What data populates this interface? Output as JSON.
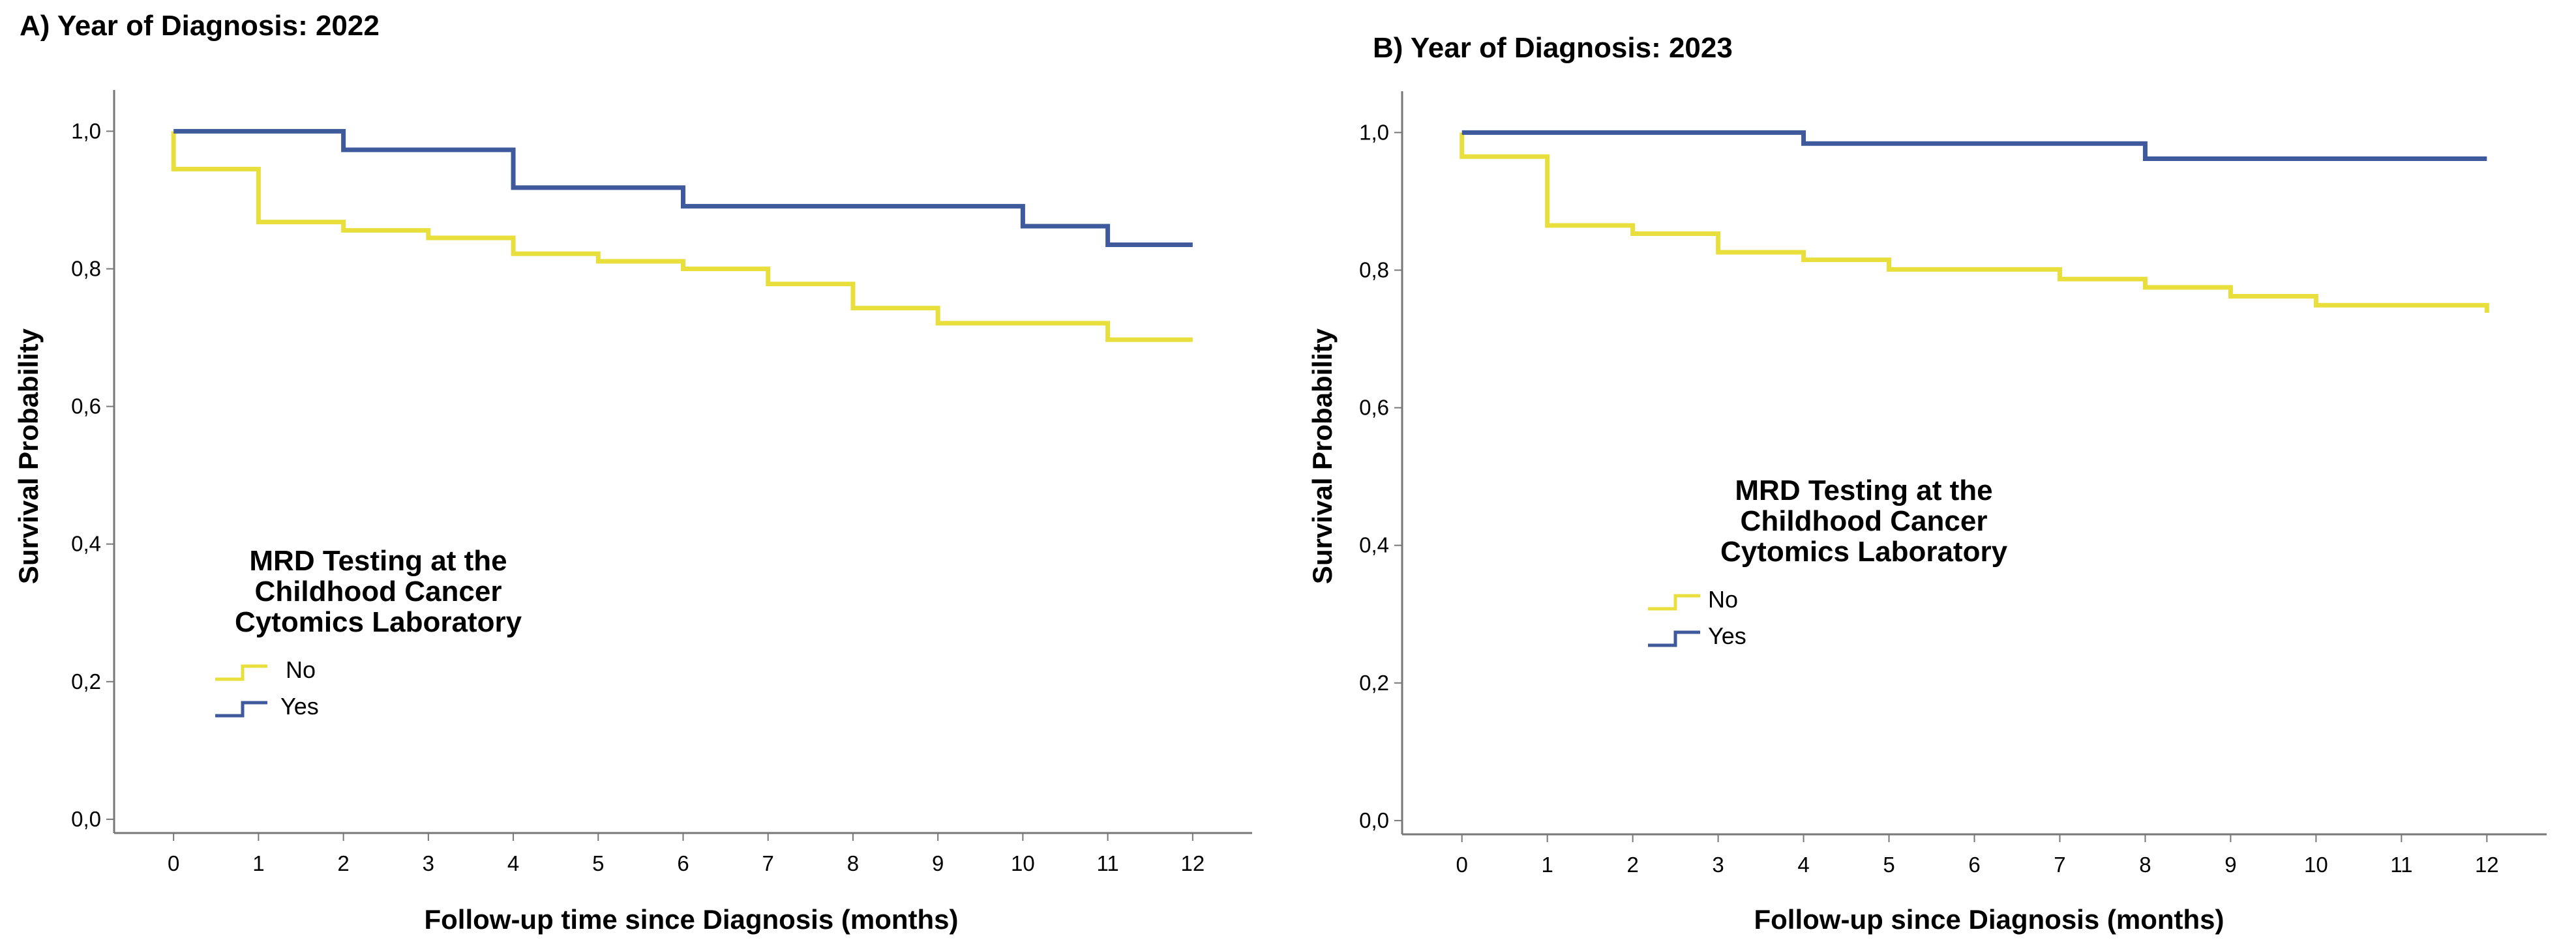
{
  "chart_data": [
    {
      "type": "line",
      "subtype": "kaplan-meier step",
      "title": "A) Year of Diagnosis: 2022",
      "xlabel": "Follow-up time since Diagnosis (months)",
      "ylabel": "Survival Probability",
      "xlim": [
        -0.7,
        12.7
      ],
      "ylim": [
        -0.02,
        1.06
      ],
      "xticks": [
        0,
        1,
        2,
        3,
        4,
        5,
        6,
        7,
        8,
        9,
        10,
        11,
        12
      ],
      "xtick_labels": [
        "0",
        "1",
        "2",
        "3",
        "4",
        "5",
        "6",
        "7",
        "8",
        "9",
        "10",
        "11",
        "12"
      ],
      "yticks": [
        0,
        0.2,
        0.4,
        0.6,
        0.8,
        1.0
      ],
      "ytick_labels": [
        "0,0",
        "0,2",
        "0,4",
        "0,6",
        "0,8",
        "1,0"
      ],
      "legend": {
        "title_lines": [
          "MRD Testing at the",
          "Childhood Cancer",
          "Cytomics Laboratory"
        ],
        "placement": "lower-left"
      },
      "series": [
        {
          "name": "No",
          "color": "#e8df3c",
          "times": [
            0,
            0,
            1,
            2,
            3,
            4,
            5,
            6,
            7,
            8,
            9,
            10,
            11,
            12
          ],
          "survival": [
            1.0,
            0.945,
            0.868,
            0.856,
            0.845,
            0.822,
            0.811,
            0.8,
            0.778,
            0.743,
            0.721,
            0.721,
            0.697,
            0.697
          ]
        },
        {
          "name": "Yes",
          "color": "#3e5a9c",
          "times": [
            0,
            2,
            4,
            6,
            10,
            11,
            12
          ],
          "survival": [
            1.0,
            0.973,
            0.918,
            0.891,
            0.862,
            0.835,
            0.835
          ]
        }
      ]
    },
    {
      "type": "line",
      "subtype": "kaplan-meier step",
      "title": "B) Year of Diagnosis: 2023",
      "xlabel": "Follow-up since Diagnosis (months)",
      "ylabel": "Survival Probability",
      "xlim": [
        -0.7,
        12.7
      ],
      "ylim": [
        -0.02,
        1.06
      ],
      "xticks": [
        0,
        1,
        2,
        3,
        4,
        5,
        6,
        7,
        8,
        9,
        10,
        11,
        12
      ],
      "xtick_labels": [
        "0",
        "1",
        "2",
        "3",
        "4",
        "5",
        "6",
        "7",
        "8",
        "9",
        "10",
        "11",
        "12"
      ],
      "yticks": [
        0,
        0.2,
        0.4,
        0.6,
        0.8,
        1.0
      ],
      "ytick_labels": [
        "0,0",
        "0,2",
        "0,4",
        "0,6",
        "0,8",
        "1,0"
      ],
      "legend": {
        "title_lines": [
          "MRD Testing at the",
          "Childhood Cancer",
          "Cytomics Laboratory"
        ],
        "placement": "center-left"
      },
      "series": [
        {
          "name": "No",
          "color": "#e8df3c",
          "times": [
            0,
            0,
            1,
            2,
            3,
            4,
            5,
            7,
            8,
            9,
            10,
            12,
            12
          ],
          "survival": [
            1.0,
            0.965,
            0.865,
            0.853,
            0.826,
            0.815,
            0.801,
            0.787,
            0.775,
            0.762,
            0.749,
            0.749,
            0.738
          ]
        },
        {
          "name": "Yes",
          "color": "#3e5a9c",
          "times": [
            0,
            4,
            8,
            12
          ],
          "survival": [
            1.0,
            0.984,
            0.962,
            0.962
          ]
        }
      ]
    }
  ]
}
